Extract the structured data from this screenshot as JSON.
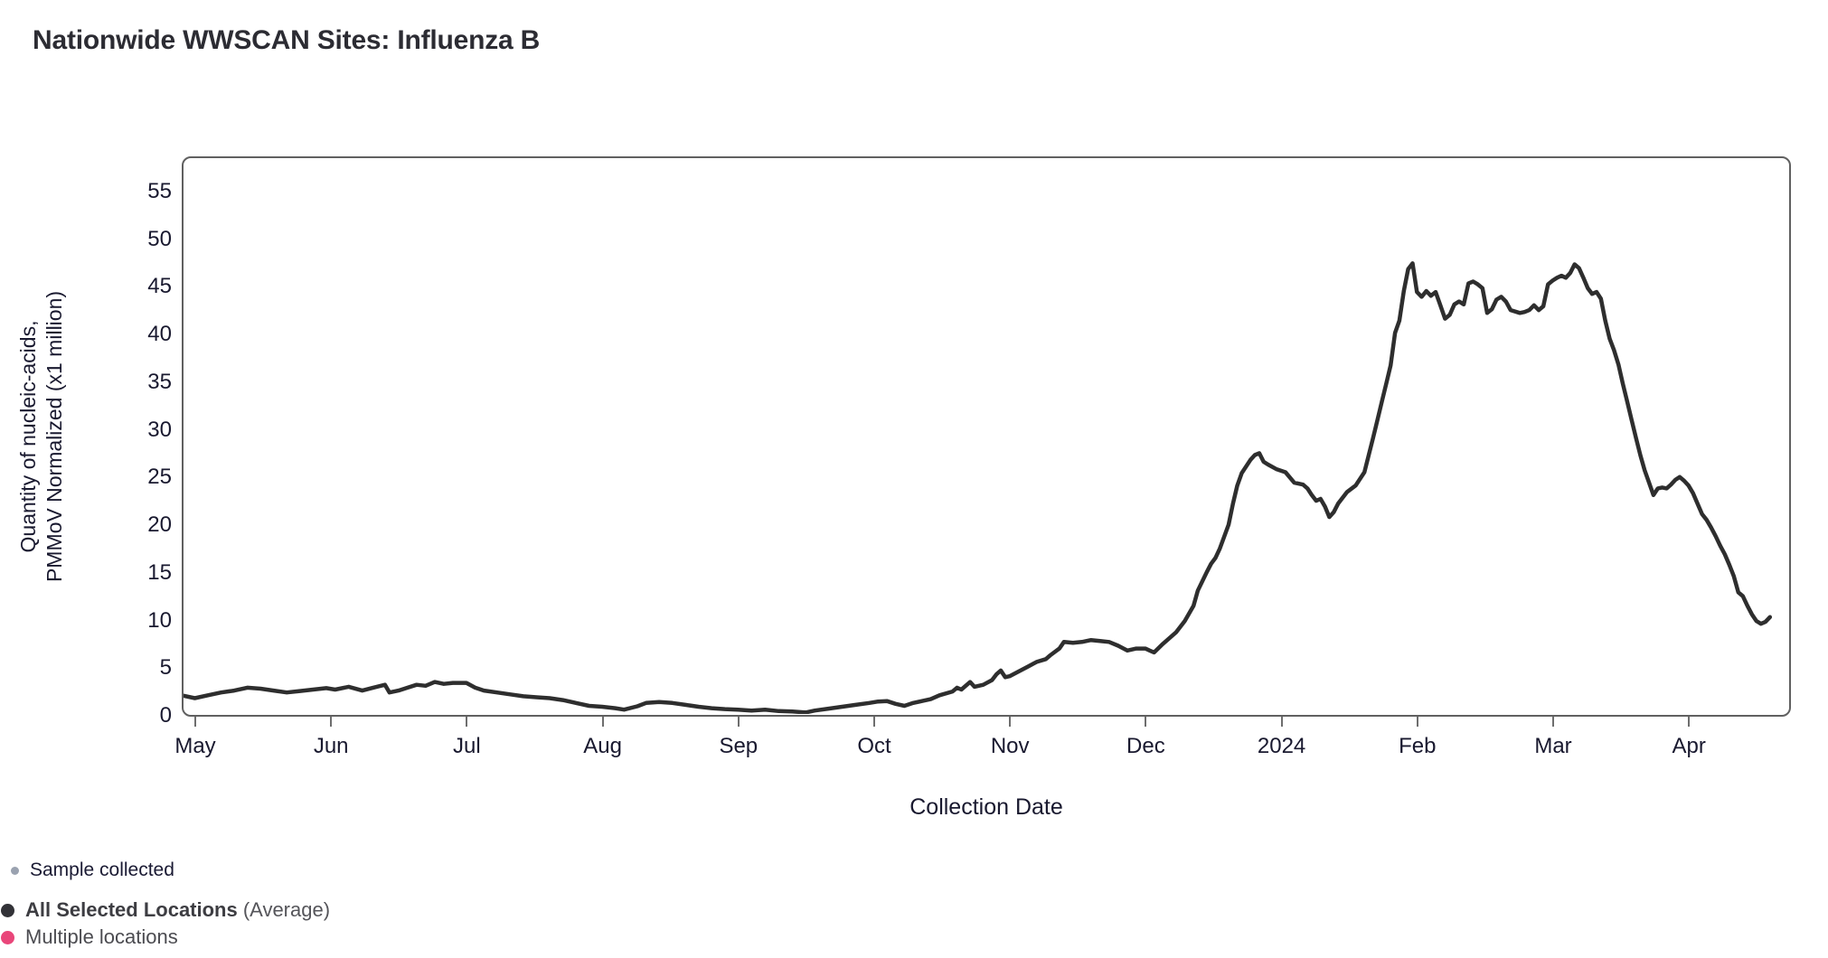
{
  "page_title": "Nationwide WWSCAN Sites: Influenza B",
  "chart_data": {
    "type": "line",
    "title": "Nationwide WWSCAN Sites: Influenza B",
    "xlabel": "Collection Date",
    "ylabel_lines": [
      "Quantity of nucleic-acids,",
      "PMMoV Normalized (x1 million)"
    ],
    "x_ticks": [
      "May",
      "Jun",
      "Jul",
      "Aug",
      "Sep",
      "Oct",
      "Nov",
      "Dec",
      "2024",
      "Feb",
      "Mar",
      "Apr"
    ],
    "y_ticks": [
      0,
      5,
      10,
      15,
      20,
      25,
      30,
      35,
      40,
      45,
      50,
      55
    ],
    "ylim": [
      0,
      58.5
    ],
    "x_range": [
      "2023-04-28",
      "2024-04-30"
    ],
    "grid": false,
    "legend_position": "bottom-left",
    "frame_color": "#606060",
    "legend": [
      {
        "label": "Sample collected",
        "color": "#9aa2b0",
        "marker": "small-dot"
      },
      {
        "label_bold": "All Selected Locations",
        "label_rest": " (Average)",
        "color": "#323237",
        "marker": "big-dot"
      },
      {
        "label": "Multiple locations",
        "color": "#e9467a",
        "marker": "big-dot"
      }
    ],
    "series": [
      {
        "name": "All Selected Locations (Average)",
        "color": "#2e2e2e",
        "line_width": 4.5,
        "points": [
          [
            "2023-04-28",
            2.1
          ],
          [
            "2023-05-01",
            1.8
          ],
          [
            "2023-05-04",
            2.1
          ],
          [
            "2023-05-07",
            2.4
          ],
          [
            "2023-05-10",
            2.6
          ],
          [
            "2023-05-13",
            2.9
          ],
          [
            "2023-05-16",
            2.8
          ],
          [
            "2023-05-19",
            2.6
          ],
          [
            "2023-05-22",
            2.4
          ],
          [
            "2023-05-25",
            2.55
          ],
          [
            "2023-05-28",
            2.7
          ],
          [
            "2023-05-31",
            2.85
          ],
          [
            "2023-06-02",
            2.7
          ],
          [
            "2023-06-05",
            3.0
          ],
          [
            "2023-06-08",
            2.6
          ],
          [
            "2023-06-10",
            2.85
          ],
          [
            "2023-06-13",
            3.2
          ],
          [
            "2023-06-14",
            2.4
          ],
          [
            "2023-06-16",
            2.6
          ],
          [
            "2023-06-18",
            2.9
          ],
          [
            "2023-06-20",
            3.2
          ],
          [
            "2023-06-22",
            3.1
          ],
          [
            "2023-06-24",
            3.5
          ],
          [
            "2023-06-26",
            3.3
          ],
          [
            "2023-06-28",
            3.4
          ],
          [
            "2023-07-01",
            3.4
          ],
          [
            "2023-07-03",
            2.9
          ],
          [
            "2023-07-05",
            2.6
          ],
          [
            "2023-07-08",
            2.4
          ],
          [
            "2023-07-11",
            2.2
          ],
          [
            "2023-07-14",
            2.0
          ],
          [
            "2023-07-17",
            1.9
          ],
          [
            "2023-07-20",
            1.8
          ],
          [
            "2023-07-23",
            1.6
          ],
          [
            "2023-07-26",
            1.3
          ],
          [
            "2023-07-29",
            1.0
          ],
          [
            "2023-08-01",
            0.9
          ],
          [
            "2023-08-04",
            0.75
          ],
          [
            "2023-08-06",
            0.6
          ],
          [
            "2023-08-09",
            0.95
          ],
          [
            "2023-08-11",
            1.3
          ],
          [
            "2023-08-14",
            1.4
          ],
          [
            "2023-08-17",
            1.3
          ],
          [
            "2023-08-20",
            1.1
          ],
          [
            "2023-08-23",
            0.9
          ],
          [
            "2023-08-26",
            0.75
          ],
          [
            "2023-08-29",
            0.65
          ],
          [
            "2023-09-01",
            0.6
          ],
          [
            "2023-09-04",
            0.5
          ],
          [
            "2023-09-07",
            0.6
          ],
          [
            "2023-09-10",
            0.45
          ],
          [
            "2023-09-13",
            0.4
          ],
          [
            "2023-09-16",
            0.3
          ],
          [
            "2023-09-18",
            0.5
          ],
          [
            "2023-09-21",
            0.7
          ],
          [
            "2023-09-24",
            0.9
          ],
          [
            "2023-09-27",
            1.1
          ],
          [
            "2023-09-30",
            1.3
          ],
          [
            "2023-10-02",
            1.45
          ],
          [
            "2023-10-04",
            1.5
          ],
          [
            "2023-10-06",
            1.2
          ],
          [
            "2023-10-08",
            1.0
          ],
          [
            "2023-10-10",
            1.3
          ],
          [
            "2023-10-12",
            1.5
          ],
          [
            "2023-10-14",
            1.7
          ],
          [
            "2023-10-16",
            2.1
          ],
          [
            "2023-10-19",
            2.5
          ],
          [
            "2023-10-20",
            2.9
          ],
          [
            "2023-10-21",
            2.7
          ],
          [
            "2023-10-23",
            3.5
          ],
          [
            "2023-10-24",
            3.0
          ],
          [
            "2023-10-26",
            3.2
          ],
          [
            "2023-10-28",
            3.7
          ],
          [
            "2023-10-29",
            4.3
          ],
          [
            "2023-10-30",
            4.7
          ],
          [
            "2023-10-31",
            4.0
          ],
          [
            "2023-11-01",
            4.1
          ],
          [
            "2023-11-03",
            4.6
          ],
          [
            "2023-11-05",
            5.1
          ],
          [
            "2023-11-07",
            5.6
          ],
          [
            "2023-11-09",
            5.9
          ],
          [
            "2023-11-10",
            6.3
          ],
          [
            "2023-11-12",
            7.0
          ],
          [
            "2023-11-13",
            7.7
          ],
          [
            "2023-11-15",
            7.6
          ],
          [
            "2023-11-17",
            7.7
          ],
          [
            "2023-11-19",
            7.9
          ],
          [
            "2023-11-21",
            7.8
          ],
          [
            "2023-11-23",
            7.7
          ],
          [
            "2023-11-25",
            7.3
          ],
          [
            "2023-11-27",
            6.8
          ],
          [
            "2023-11-29",
            7.0
          ],
          [
            "2023-12-01",
            7.0
          ],
          [
            "2023-12-02",
            6.8
          ],
          [
            "2023-12-03",
            6.6
          ],
          [
            "2023-12-05",
            7.5
          ],
          [
            "2023-12-08",
            8.7
          ],
          [
            "2023-12-10",
            9.9
          ],
          [
            "2023-12-12",
            11.5
          ],
          [
            "2023-12-13",
            13.1
          ],
          [
            "2023-12-15",
            15.0
          ],
          [
            "2023-12-16",
            15.9
          ],
          [
            "2023-12-17",
            16.5
          ],
          [
            "2023-12-18",
            17.5
          ],
          [
            "2023-12-20",
            20.0
          ],
          [
            "2023-12-21",
            22.2
          ],
          [
            "2023-12-22",
            24.1
          ],
          [
            "2023-12-23",
            25.4
          ],
          [
            "2023-12-25",
            26.8
          ],
          [
            "2023-12-26",
            27.3
          ],
          [
            "2023-12-27",
            27.5
          ],
          [
            "2023-12-28",
            26.6
          ],
          [
            "2023-12-29",
            26.3
          ],
          [
            "2023-12-31",
            25.8
          ],
          [
            "2024-01-02",
            25.5
          ],
          [
            "2024-01-04",
            24.4
          ],
          [
            "2024-01-06",
            24.2
          ],
          [
            "2024-01-07",
            23.8
          ],
          [
            "2024-01-08",
            23.1
          ],
          [
            "2024-01-09",
            22.5
          ],
          [
            "2024-01-10",
            22.7
          ],
          [
            "2024-01-11",
            21.9
          ],
          [
            "2024-01-12",
            20.8
          ],
          [
            "2024-01-13",
            21.3
          ],
          [
            "2024-01-14",
            22.2
          ],
          [
            "2024-01-15",
            22.8
          ],
          [
            "2024-01-16",
            23.4
          ],
          [
            "2024-01-18",
            24.1
          ],
          [
            "2024-01-20",
            25.5
          ],
          [
            "2024-01-21",
            27.3
          ],
          [
            "2024-01-22",
            29.1
          ],
          [
            "2024-01-23",
            31.0
          ],
          [
            "2024-01-24",
            32.9
          ],
          [
            "2024-01-25",
            34.8
          ],
          [
            "2024-01-26",
            36.7
          ],
          [
            "2024-01-27",
            40.1
          ],
          [
            "2024-01-28",
            41.4
          ],
          [
            "2024-01-29",
            44.5
          ],
          [
            "2024-01-30",
            46.8
          ],
          [
            "2024-01-31",
            47.4
          ],
          [
            "2024-02-01",
            44.4
          ],
          [
            "2024-02-02",
            43.9
          ],
          [
            "2024-02-03",
            44.5
          ],
          [
            "2024-02-04",
            44.0
          ],
          [
            "2024-02-05",
            44.4
          ],
          [
            "2024-02-06",
            43.0
          ],
          [
            "2024-02-07",
            41.6
          ],
          [
            "2024-02-08",
            42.0
          ],
          [
            "2024-02-09",
            43.1
          ],
          [
            "2024-02-10",
            43.4
          ],
          [
            "2024-02-11",
            43.1
          ],
          [
            "2024-02-12",
            45.3
          ],
          [
            "2024-02-13",
            45.5
          ],
          [
            "2024-02-14",
            45.2
          ],
          [
            "2024-02-15",
            44.8
          ],
          [
            "2024-02-16",
            42.2
          ],
          [
            "2024-02-17",
            42.6
          ],
          [
            "2024-02-18",
            43.6
          ],
          [
            "2024-02-19",
            43.9
          ],
          [
            "2024-02-20",
            43.4
          ],
          [
            "2024-02-21",
            42.5
          ],
          [
            "2024-02-23",
            42.2
          ],
          [
            "2024-02-24",
            42.3
          ],
          [
            "2024-02-25",
            42.5
          ],
          [
            "2024-02-26",
            43.0
          ],
          [
            "2024-02-27",
            42.5
          ],
          [
            "2024-02-28",
            42.9
          ],
          [
            "2024-02-29",
            45.2
          ],
          [
            "2024-03-01",
            45.6
          ],
          [
            "2024-03-02",
            45.9
          ],
          [
            "2024-03-03",
            46.1
          ],
          [
            "2024-03-04",
            45.9
          ],
          [
            "2024-03-05",
            46.4
          ],
          [
            "2024-03-06",
            47.3
          ],
          [
            "2024-03-07",
            46.9
          ],
          [
            "2024-03-08",
            45.9
          ],
          [
            "2024-03-09",
            44.8
          ],
          [
            "2024-03-10",
            44.2
          ],
          [
            "2024-03-11",
            44.4
          ],
          [
            "2024-03-12",
            43.7
          ],
          [
            "2024-03-13",
            41.4
          ],
          [
            "2024-03-14",
            39.5
          ],
          [
            "2024-03-15",
            38.3
          ],
          [
            "2024-03-16",
            36.8
          ],
          [
            "2024-03-17",
            34.8
          ],
          [
            "2024-03-18",
            32.9
          ],
          [
            "2024-03-19",
            31.0
          ],
          [
            "2024-03-20",
            29.1
          ],
          [
            "2024-03-21",
            27.3
          ],
          [
            "2024-03-22",
            25.7
          ],
          [
            "2024-03-23",
            24.4
          ],
          [
            "2024-03-24",
            23.1
          ],
          [
            "2024-03-25",
            23.8
          ],
          [
            "2024-03-26",
            23.9
          ],
          [
            "2024-03-27",
            23.8
          ],
          [
            "2024-03-28",
            24.2
          ],
          [
            "2024-03-29",
            24.7
          ],
          [
            "2024-03-30",
            25.0
          ],
          [
            "2024-03-31",
            24.6
          ],
          [
            "2024-04-01",
            24.1
          ],
          [
            "2024-04-02",
            23.3
          ],
          [
            "2024-04-03",
            22.2
          ],
          [
            "2024-04-04",
            21.1
          ],
          [
            "2024-04-05",
            20.5
          ],
          [
            "2024-04-06",
            19.7
          ],
          [
            "2024-04-07",
            18.8
          ],
          [
            "2024-04-08",
            17.8
          ],
          [
            "2024-04-09",
            16.9
          ],
          [
            "2024-04-10",
            15.8
          ],
          [
            "2024-04-11",
            14.6
          ],
          [
            "2024-04-12",
            12.9
          ],
          [
            "2024-04-13",
            12.5
          ],
          [
            "2024-04-14",
            11.5
          ],
          [
            "2024-04-15",
            10.6
          ],
          [
            "2024-04-16",
            9.9
          ],
          [
            "2024-04-17",
            9.6
          ],
          [
            "2024-04-18",
            9.8
          ],
          [
            "2024-04-19",
            10.3
          ]
        ]
      }
    ]
  }
}
